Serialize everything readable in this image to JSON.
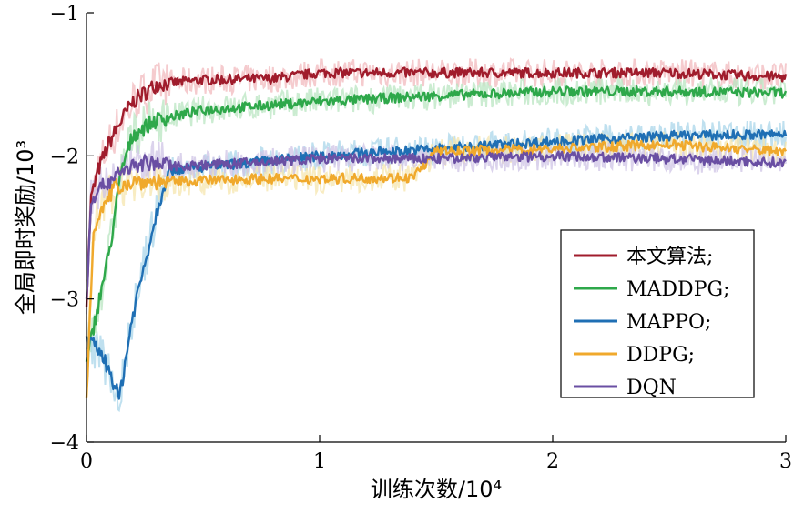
{
  "chart_data": {
    "type": "line",
    "xlabel": "训练次数/10⁴",
    "ylabel": "全局即时奖励/10³",
    "xlim": [
      0,
      3
    ],
    "ylim": [
      -4,
      -1
    ],
    "xticks": [
      0,
      1,
      2,
      3
    ],
    "xtick_labels": [
      "0",
      "1",
      "2",
      "3"
    ],
    "yticks": [
      -1,
      -2,
      -3,
      -4
    ],
    "ytick_labels": [
      "−1",
      "−2",
      "−3",
      "−4"
    ],
    "legend_position": "right",
    "series": [
      {
        "name": "本文算法;",
        "color": "#a01c2c",
        "shade": "#f2b9bd",
        "x": [
          0,
          0.02,
          0.05,
          0.1,
          0.15,
          0.2,
          0.3,
          0.5,
          0.8,
          1.0,
          1.5,
          2.0,
          2.5,
          3.0
        ],
        "y": [
          -3.0,
          -2.3,
          -2.1,
          -1.9,
          -1.75,
          -1.62,
          -1.5,
          -1.47,
          -1.46,
          -1.42,
          -1.42,
          -1.42,
          -1.42,
          -1.45
        ]
      },
      {
        "name": "MADDPG;",
        "color": "#2ea84a",
        "shade": "#b9e5c2",
        "x": [
          0,
          0.03,
          0.1,
          0.15,
          0.2,
          0.3,
          0.5,
          1.0,
          1.5,
          2.0,
          2.5,
          3.0
        ],
        "y": [
          -3.45,
          -3.2,
          -2.65,
          -2.1,
          -1.85,
          -1.75,
          -1.68,
          -1.62,
          -1.58,
          -1.55,
          -1.55,
          -1.56
        ]
      },
      {
        "name": "MAPPO;",
        "color": "#1f6fb4",
        "shade": "#a9d6ea",
        "x": [
          0,
          0.05,
          0.1,
          0.14,
          0.2,
          0.25,
          0.3,
          0.35,
          0.5,
          1.0,
          1.5,
          2.0,
          2.5,
          3.0
        ],
        "y": [
          -3.3,
          -3.35,
          -3.5,
          -3.7,
          -3.1,
          -2.75,
          -2.4,
          -2.1,
          -2.08,
          -2.0,
          -1.95,
          -1.9,
          -1.86,
          -1.85
        ]
      },
      {
        "name": "DDPG;",
        "color": "#f0a92c",
        "shade": "#f5e6ae",
        "x": [
          0,
          0.03,
          0.08,
          0.12,
          0.2,
          0.4,
          0.7,
          1.0,
          1.4,
          1.5,
          2.0,
          2.5,
          3.0
        ],
        "y": [
          -3.7,
          -2.5,
          -2.35,
          -2.22,
          -2.18,
          -2.18,
          -2.16,
          -2.16,
          -2.15,
          -1.97,
          -1.95,
          -1.92,
          -1.97
        ]
      },
      {
        "name": "DQN",
        "color": "#6a4fa3",
        "shade": "#cfc4e6",
        "x": [
          0,
          0.02,
          0.08,
          0.15,
          0.25,
          0.4,
          0.7,
          1.0,
          1.5,
          2.0,
          2.5,
          3.0
        ],
        "y": [
          -3.0,
          -2.3,
          -2.2,
          -2.1,
          -2.05,
          -2.07,
          -2.05,
          -2.02,
          -2.02,
          -2.0,
          -2.02,
          -2.05
        ]
      }
    ]
  }
}
